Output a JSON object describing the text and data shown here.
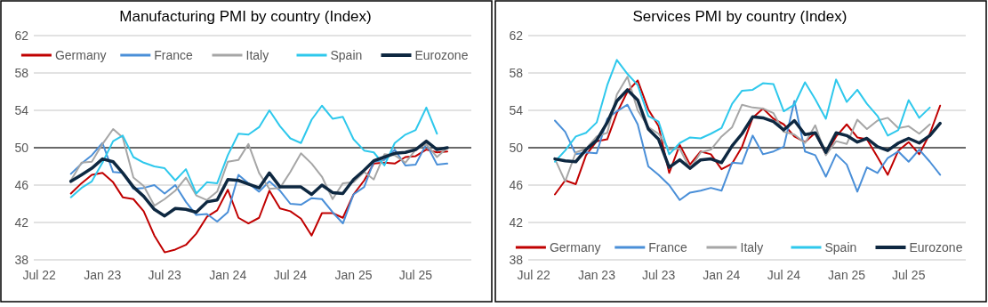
{
  "chart_data": [
    {
      "type": "line",
      "title": "Manufacturing PMI by country (Index)",
      "x": [
        "2022-10",
        "2022-11",
        "2022-12",
        "2023-01",
        "2023-02",
        "2023-03",
        "2023-04",
        "2023-05",
        "2023-06",
        "2023-07",
        "2023-08",
        "2023-09",
        "2023-10",
        "2023-11",
        "2023-12",
        "2024-01",
        "2024-02",
        "2024-03",
        "2024-04",
        "2024-05",
        "2024-06",
        "2024-07",
        "2024-08",
        "2024-09",
        "2024-10",
        "2024-11",
        "2024-12",
        "2025-01",
        "2025-02",
        "2025-03",
        "2025-04",
        "2025-05",
        "2025-06",
        "2025-07",
        "2025-08",
        "2025-09",
        "2025-10"
      ],
      "series": [
        {
          "name": "Germany",
          "color": "#c00000",
          "values": [
            45.1,
            46.2,
            47.1,
            47.3,
            46.3,
            44.7,
            44.5,
            43.2,
            40.6,
            38.8,
            39.1,
            39.6,
            40.8,
            42.6,
            43.3,
            45.5,
            42.5,
            41.9,
            42.5,
            45.4,
            43.5,
            43.2,
            42.4,
            40.6,
            43.0,
            43.0,
            42.5,
            45.0,
            46.5,
            48.3,
            48.4,
            48.3,
            49.0,
            49.1,
            49.8,
            49.5,
            49.6
          ]
        },
        {
          "name": "France",
          "color": "#4a8fd8",
          "values": [
            47.2,
            48.3,
            49.2,
            50.5,
            47.4,
            47.3,
            45.6,
            45.7,
            46.0,
            45.1,
            46.0,
            44.2,
            42.8,
            42.9,
            42.1,
            43.1,
            47.1,
            46.2,
            45.3,
            46.4,
            45.4,
            44.0,
            43.9,
            44.6,
            44.5,
            43.1,
            41.9,
            45.0,
            45.8,
            48.5,
            48.7,
            49.8,
            48.1,
            48.2,
            50.4,
            48.2,
            48.3
          ]
        },
        {
          "name": "Italy",
          "color": "#a6a6a6",
          "values": [
            46.5,
            48.4,
            48.5,
            50.4,
            52.0,
            51.1,
            46.8,
            45.9,
            43.8,
            44.5,
            45.4,
            46.8,
            44.9,
            44.4,
            45.3,
            48.5,
            48.7,
            50.4,
            47.3,
            45.6,
            45.7,
            47.4,
            49.4,
            48.3,
            46.9,
            44.5,
            46.2,
            46.3,
            47.4,
            46.6,
            49.3,
            49.2,
            48.4,
            49.8,
            50.4,
            49.0,
            50.0
          ]
        },
        {
          "name": "Spain",
          "color": "#2ec8ec",
          "x": [
            "2022-10",
            "2022-11",
            "2022-12",
            "2023-01",
            "2023-02",
            "2023-03",
            "2023-04",
            "2023-05",
            "2023-06",
            "2023-07",
            "2023-08",
            "2023-09",
            "2023-10",
            "2023-11",
            "2023-12",
            "2024-01",
            "2024-02",
            "2024-03",
            "2024-04",
            "2024-05",
            "2024-06",
            "2024-07",
            "2024-08",
            "2024-09",
            "2024-10",
            "2024-11",
            "2024-12",
            "2025-01",
            "2025-02",
            "2025-03",
            "2025-04",
            "2025-05",
            "2025-06",
            "2025-07",
            "2025-08",
            "2025-09"
          ],
          "values": [
            44.7,
            45.7,
            46.4,
            48.4,
            50.7,
            51.3,
            49.0,
            48.4,
            48.0,
            47.8,
            46.5,
            47.7,
            45.1,
            46.3,
            46.2,
            49.2,
            51.5,
            51.4,
            52.2,
            54.0,
            52.3,
            51.0,
            50.5,
            53.0,
            54.5,
            53.1,
            53.3,
            50.9,
            49.7,
            49.5,
            48.1,
            50.5,
            51.4,
            51.9,
            54.3,
            51.5
          ]
        },
        {
          "name": "Eurozone",
          "color": "#0e2841",
          "values": [
            46.4,
            47.1,
            47.8,
            48.8,
            48.5,
            47.3,
            45.8,
            44.8,
            43.4,
            42.7,
            43.5,
            43.4,
            43.1,
            44.2,
            44.4,
            46.6,
            46.5,
            46.1,
            45.7,
            47.3,
            45.8,
            45.8,
            45.8,
            45.0,
            46.0,
            45.2,
            45.1,
            46.6,
            47.6,
            48.6,
            49.0,
            49.4,
            49.5,
            49.8,
            50.7,
            49.8,
            50.0
          ]
        }
      ],
      "xlim": [
        "2022-06-15",
        "2025-12-10"
      ],
      "xticks": [
        {
          "value": "2022-07",
          "label": "Jul 22"
        },
        {
          "value": "2023-01",
          "label": "Jan 23"
        },
        {
          "value": "2023-07",
          "label": "Jul 23"
        },
        {
          "value": "2024-01",
          "label": "Jan 24"
        },
        {
          "value": "2024-07",
          "label": "Jul 24"
        },
        {
          "value": "2025-01",
          "label": "Jan 25"
        },
        {
          "value": "2025-07",
          "label": "Jul 25"
        }
      ],
      "ylim": [
        38,
        62
      ],
      "yticks": [
        38,
        42,
        46,
        50,
        54,
        58,
        62
      ],
      "grid": "y",
      "legend": "top",
      "ref_lines": [
        {
          "axis": "y",
          "value": 50,
          "color": "#404040"
        }
      ]
    },
    {
      "type": "line",
      "title": "Services PMI by country (Index)",
      "x": [
        "2022-09",
        "2022-10",
        "2022-11",
        "2022-12",
        "2023-01",
        "2023-02",
        "2023-03",
        "2023-04",
        "2023-05",
        "2023-06",
        "2023-07",
        "2023-08",
        "2023-09",
        "2023-10",
        "2023-11",
        "2023-12",
        "2024-01",
        "2024-02",
        "2024-03",
        "2024-04",
        "2024-05",
        "2024-06",
        "2024-07",
        "2024-08",
        "2024-09",
        "2024-10",
        "2024-11",
        "2024-12",
        "2025-01",
        "2025-02",
        "2025-03",
        "2025-04",
        "2025-05",
        "2025-06",
        "2025-07",
        "2025-08",
        "2025-09",
        "2025-10"
      ],
      "series": [
        {
          "name": "Germany",
          "color": "#c00000",
          "values": [
            45.0,
            46.5,
            46.1,
            49.2,
            50.7,
            50.9,
            53.7,
            56.0,
            57.2,
            54.1,
            52.3,
            47.3,
            50.3,
            48.2,
            49.6,
            49.3,
            47.7,
            48.3,
            50.1,
            53.2,
            54.2,
            53.1,
            52.5,
            51.2,
            50.6,
            51.6,
            49.3,
            51.2,
            52.5,
            51.1,
            50.9,
            49.0,
            47.1,
            49.7,
            50.6,
            49.3,
            51.5,
            54.5
          ]
        },
        {
          "name": "France",
          "color": "#4a8fd8",
          "values": [
            52.9,
            51.7,
            49.3,
            49.5,
            49.4,
            53.1,
            53.9,
            54.6,
            52.5,
            48.0,
            47.1,
            46.0,
            44.4,
            45.2,
            45.4,
            45.7,
            45.4,
            48.4,
            48.3,
            51.3,
            49.3,
            49.6,
            50.1,
            55.0,
            49.6,
            49.2,
            46.9,
            49.3,
            48.2,
            45.3,
            47.9,
            47.3,
            48.9,
            49.6,
            48.5,
            49.8,
            48.5,
            47.1
          ]
        },
        {
          "name": "Italy",
          "color": "#a6a6a6",
          "x": [
            "2022-09",
            "2022-10",
            "2022-11",
            "2022-12",
            "2023-01",
            "2023-02",
            "2023-03",
            "2023-04",
            "2023-05",
            "2023-06",
            "2023-07",
            "2023-08",
            "2023-09",
            "2023-10",
            "2023-11",
            "2023-12",
            "2024-01",
            "2024-02",
            "2024-03",
            "2024-04",
            "2024-05",
            "2024-06",
            "2024-07",
            "2024-08",
            "2024-09",
            "2024-10",
            "2024-11",
            "2024-12",
            "2025-01",
            "2025-02",
            "2025-03",
            "2025-04",
            "2025-05",
            "2025-06",
            "2025-07",
            "2025-08",
            "2025-09"
          ],
          "values": [
            48.8,
            46.4,
            49.5,
            49.9,
            51.2,
            51.6,
            55.7,
            57.6,
            54.0,
            52.2,
            51.5,
            49.8,
            49.9,
            47.7,
            49.5,
            49.8,
            51.2,
            52.2,
            54.6,
            54.3,
            54.2,
            53.7,
            51.7,
            51.4,
            50.5,
            52.4,
            49.2,
            50.7,
            50.4,
            53.0,
            52.0,
            52.9,
            53.2,
            52.1,
            52.3,
            51.5,
            52.5
          ]
        },
        {
          "name": "Spain",
          "color": "#2ec8ec",
          "x": [
            "2022-09",
            "2022-10",
            "2022-11",
            "2022-12",
            "2023-01",
            "2023-02",
            "2023-03",
            "2023-04",
            "2023-05",
            "2023-06",
            "2023-07",
            "2023-08",
            "2023-09",
            "2023-10",
            "2023-11",
            "2023-12",
            "2024-01",
            "2024-02",
            "2024-03",
            "2024-04",
            "2024-05",
            "2024-06",
            "2024-07",
            "2024-08",
            "2024-09",
            "2024-10",
            "2024-11",
            "2024-12",
            "2025-01",
            "2025-02",
            "2025-03",
            "2025-04",
            "2025-05",
            "2025-06",
            "2025-07",
            "2025-08",
            "2025-09"
          ],
          "values": [
            48.5,
            49.7,
            51.2,
            51.6,
            52.7,
            56.7,
            59.4,
            57.9,
            56.7,
            53.4,
            52.8,
            49.3,
            50.5,
            51.1,
            51.0,
            51.5,
            52.1,
            54.7,
            56.1,
            56.2,
            56.9,
            56.8,
            53.9,
            54.6,
            57.0,
            55.2,
            53.1,
            57.3,
            54.9,
            56.2,
            54.7,
            53.4,
            51.3,
            51.9,
            55.1,
            53.2,
            54.3
          ]
        },
        {
          "name": "Eurozone",
          "color": "#0e2841",
          "values": [
            48.8,
            48.6,
            48.5,
            49.8,
            50.8,
            52.7,
            55.0,
            56.2,
            55.1,
            52.0,
            50.9,
            47.9,
            48.7,
            47.8,
            48.7,
            48.8,
            48.4,
            50.2,
            51.5,
            53.3,
            53.2,
            52.8,
            51.9,
            52.9,
            51.4,
            51.6,
            49.5,
            51.6,
            51.3,
            50.6,
            51.0,
            50.1,
            49.7,
            50.5,
            51.0,
            50.5,
            51.3,
            52.6
          ]
        }
      ],
      "xlim": [
        "2022-06-15",
        "2025-12-15"
      ],
      "xticks": [
        {
          "value": "2022-07",
          "label": "Jul 22"
        },
        {
          "value": "2023-01",
          "label": "Jan 23"
        },
        {
          "value": "2023-07",
          "label": "Jul 23"
        },
        {
          "value": "2024-01",
          "label": "Jan 24"
        },
        {
          "value": "2024-07",
          "label": "Jul 24"
        },
        {
          "value": "2025-01",
          "label": "Jan 25"
        },
        {
          "value": "2025-07",
          "label": "Jul 25"
        }
      ],
      "ylim": [
        38,
        62
      ],
      "yticks": [
        38,
        42,
        46,
        50,
        54,
        58,
        62
      ],
      "grid": "y",
      "legend": "bottom",
      "ref_lines": [
        {
          "axis": "y",
          "value": 50,
          "color": "#404040"
        }
      ]
    }
  ]
}
